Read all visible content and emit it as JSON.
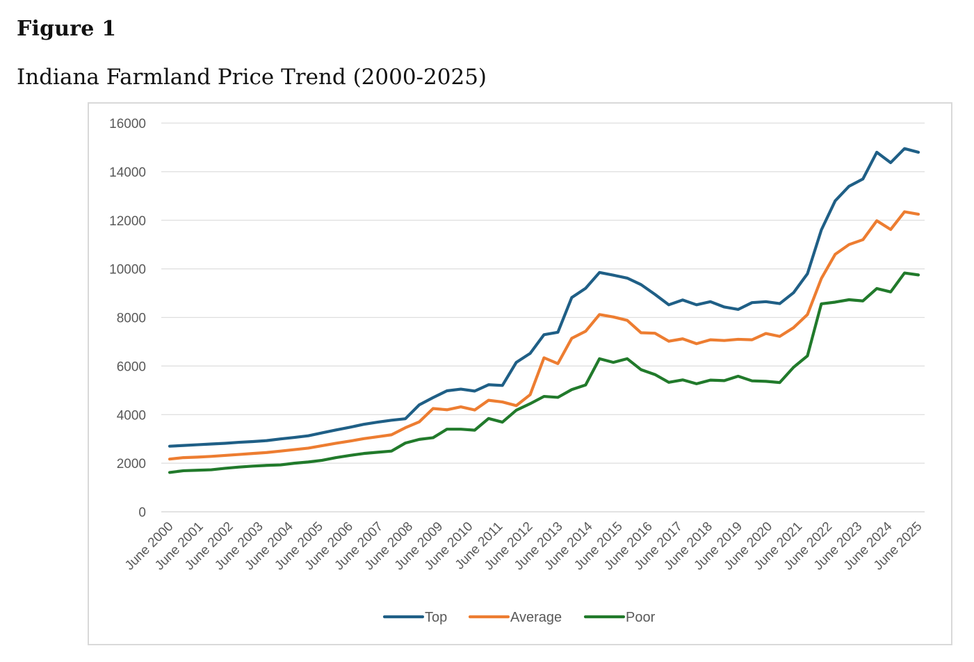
{
  "figure": {
    "label": "Figure 1",
    "title": "Indiana Farmland Price Trend (2000-2025)"
  },
  "chart_data": {
    "type": "line",
    "title": "",
    "xlabel": "",
    "ylabel": "",
    "ylim": [
      0,
      16000
    ],
    "yticks": [
      0,
      2000,
      4000,
      6000,
      8000,
      10000,
      12000,
      14000,
      16000
    ],
    "grid": true,
    "legend_position": "bottom",
    "x_tick_labels": [
      "June 2000",
      "June 2001",
      "June 2002",
      "June 2003",
      "June 2004",
      "June 2005",
      "June 2006",
      "June 2007",
      "June 2008",
      "June 2009",
      "June 2010",
      "June 2011",
      "June 2012",
      "June 2013",
      "June 2014",
      "June 2015",
      "June 2016",
      "June 2017",
      "June 2018",
      "June 2019",
      "June 2020",
      "June 2021",
      "June 2022",
      "June 2023",
      "June 2024",
      "June 2025"
    ],
    "series": [
      {
        "name": "Top",
        "color": "#1f5f86",
        "values": [
          2700,
          2730,
          2760,
          2790,
          2820,
          2860,
          2890,
          2930,
          3000,
          3060,
          3130,
          3250,
          3370,
          3480,
          3600,
          3690,
          3770,
          3830,
          4400,
          4700,
          4980,
          5050,
          4970,
          5230,
          5200,
          6150,
          6520,
          7290,
          7390,
          8820,
          9200,
          9850,
          9740,
          9620,
          9350,
          8950,
          8520,
          8720,
          8520,
          8650,
          8430,
          8330,
          8610,
          8650,
          8570,
          9020,
          9800,
          11600,
          12800,
          13400,
          13700,
          14800,
          14370,
          14950,
          14800
        ]
      },
      {
        "name": "Average",
        "color": "#ed7d31",
        "values": [
          2170,
          2230,
          2250,
          2280,
          2320,
          2360,
          2400,
          2440,
          2500,
          2560,
          2620,
          2720,
          2820,
          2910,
          3010,
          3090,
          3170,
          3460,
          3700,
          4250,
          4200,
          4320,
          4190,
          4590,
          4520,
          4370,
          4820,
          6340,
          6100,
          7140,
          7430,
          8120,
          8020,
          7880,
          7370,
          7350,
          7020,
          7120,
          6920,
          7080,
          7050,
          7100,
          7080,
          7340,
          7220,
          7580,
          8120,
          9600,
          10600,
          11000,
          11200,
          11980,
          11620,
          12350,
          12250
        ]
      },
      {
        "name": "Poor",
        "color": "#217a2b",
        "values": [
          1620,
          1690,
          1710,
          1730,
          1790,
          1840,
          1880,
          1910,
          1930,
          2000,
          2050,
          2120,
          2230,
          2320,
          2400,
          2450,
          2500,
          2830,
          2980,
          3050,
          3400,
          3400,
          3360,
          3840,
          3690,
          4180,
          4450,
          4750,
          4710,
          5030,
          5220,
          6300,
          6150,
          6300,
          5850,
          5650,
          5330,
          5430,
          5270,
          5420,
          5400,
          5580,
          5390,
          5370,
          5320,
          5950,
          6420,
          8560,
          8630,
          8730,
          8680,
          9190,
          9050,
          9830,
          9750
        ]
      }
    ]
  }
}
